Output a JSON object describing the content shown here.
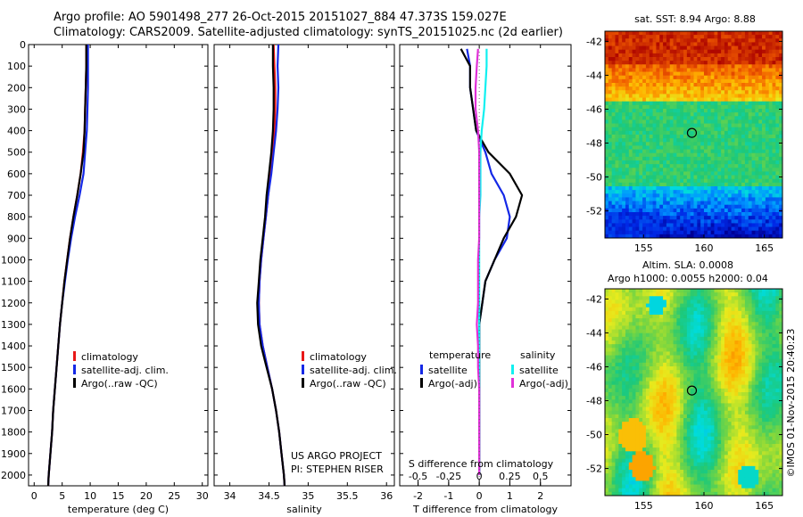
{
  "header": {
    "line1": "Argo profile: AO 5901498_277 26-Oct-2015 20151027_884 47.373S 159.027E",
    "line2": "Climatology: CARS2009. Satellite-adjusted climatology: synTS_20151025.nc (2d earlier)"
  },
  "colors": {
    "red": "#e81818",
    "blue": "#1428e6",
    "black": "#000000",
    "cyan": "#10f0f0",
    "magenta": "#e030d8"
  },
  "chart_data": [
    {
      "id": "temperature",
      "type": "line",
      "xlabel": "temperature (deg C)",
      "xlim": [
        -1,
        31
      ],
      "ylim": [
        2050,
        0
      ],
      "xticks": [
        "0",
        "5",
        "10",
        "15",
        "20",
        "25",
        "30"
      ],
      "yticks": [
        "0",
        "100",
        "200",
        "300",
        "400",
        "500",
        "600",
        "700",
        "800",
        "900",
        "1000",
        "1100",
        "1200",
        "1300",
        "1400",
        "1500",
        "1600",
        "1700",
        "1800",
        "1900",
        "2000"
      ],
      "legend": [
        "climatology",
        "satellite-adj. clim.",
        "Argo(..raw -QC)"
      ],
      "series": [
        {
          "name": "climatology",
          "color": "red",
          "x": [
            9.3,
            9.3,
            9.2,
            9.1,
            9.0,
            8.7,
            8.3,
            7.7,
            7.0,
            6.4,
            5.9,
            5.4,
            5.0,
            4.6,
            4.3,
            4.0,
            3.7,
            3.4,
            3.2,
            2.9,
            2.6,
            2.5
          ],
          "y": [
            0,
            100,
            200,
            300,
            400,
            500,
            600,
            700,
            800,
            900,
            1000,
            1100,
            1200,
            1300,
            1400,
            1500,
            1600,
            1700,
            1800,
            1900,
            2000,
            2050
          ]
        },
        {
          "name": "satellite-adj. clim.",
          "color": "blue",
          "x": [
            9.6,
            9.6,
            9.6,
            9.5,
            9.4,
            9.1,
            8.8,
            8.1,
            7.3,
            6.6,
            6.0,
            5.5,
            5.0,
            4.6,
            4.3,
            4.0,
            3.7,
            3.4,
            3.2,
            2.9,
            2.6,
            2.5
          ],
          "y": [
            0,
            100,
            200,
            300,
            400,
            500,
            600,
            700,
            800,
            900,
            1000,
            1100,
            1200,
            1300,
            1400,
            1500,
            1600,
            1700,
            1800,
            1900,
            2000,
            2050
          ]
        },
        {
          "name": "Argo(..raw -QC)",
          "color": "black",
          "x": [
            9.3,
            9.3,
            9.2,
            9.1,
            9.0,
            8.8,
            8.3,
            7.7,
            7.0,
            6.4,
            5.9,
            5.4,
            5.0,
            4.6,
            4.3,
            4.0,
            3.7,
            3.4,
            3.2,
            2.9,
            2.6,
            2.5
          ],
          "y": [
            0,
            100,
            200,
            300,
            400,
            500,
            600,
            700,
            800,
            900,
            1000,
            1100,
            1200,
            1300,
            1400,
            1500,
            1600,
            1700,
            1800,
            1900,
            2000,
            2050
          ]
        }
      ]
    },
    {
      "id": "salinity",
      "type": "line",
      "xlabel": "salinity",
      "xlim": [
        33.8,
        36.1
      ],
      "ylim": [
        2050,
        0
      ],
      "xticks": [
        "34",
        "34.5",
        "35",
        "35.5",
        "36"
      ],
      "legend": [
        "climatology",
        "satellite-adj. clim.",
        "Argo(..raw -QC)"
      ],
      "annotation": [
        "US ARGO PROJECT",
        "PI: STEPHEN RISER"
      ],
      "series": [
        {
          "name": "climatology",
          "color": "red",
          "x": [
            34.56,
            34.57,
            34.58,
            34.58,
            34.57,
            34.54,
            34.52,
            34.49,
            34.46,
            34.43,
            34.4,
            34.38,
            34.37,
            34.38,
            34.42,
            34.48,
            34.54,
            34.59,
            34.63,
            34.66,
            34.69,
            34.7
          ],
          "y": [
            0,
            100,
            200,
            300,
            400,
            500,
            600,
            700,
            800,
            900,
            1000,
            1100,
            1200,
            1300,
            1400,
            1500,
            1600,
            1700,
            1800,
            1900,
            2000,
            2050
          ]
        },
        {
          "name": "satellite-adj. clim.",
          "color": "blue",
          "x": [
            34.62,
            34.61,
            34.62,
            34.61,
            34.59,
            34.56,
            34.53,
            34.49,
            34.46,
            34.43,
            34.4,
            34.38,
            34.37,
            34.38,
            34.42,
            34.48,
            34.54,
            34.59,
            34.63,
            34.66,
            34.69,
            34.7
          ],
          "y": [
            0,
            100,
            200,
            300,
            400,
            500,
            600,
            700,
            800,
            900,
            1000,
            1100,
            1200,
            1300,
            1400,
            1500,
            1600,
            1700,
            1800,
            1900,
            2000,
            2050
          ]
        },
        {
          "name": "Argo(..raw -QC)",
          "color": "black",
          "x": [
            34.55,
            34.55,
            34.56,
            34.56,
            34.55,
            34.53,
            34.5,
            34.47,
            34.45,
            34.42,
            34.39,
            34.37,
            34.35,
            34.36,
            34.4,
            34.47,
            34.54,
            34.59,
            34.63,
            34.66,
            34.69,
            34.7
          ],
          "y": [
            0,
            100,
            200,
            300,
            400,
            500,
            600,
            700,
            800,
            900,
            1000,
            1100,
            1200,
            1300,
            1400,
            1500,
            1600,
            1700,
            1800,
            1900,
            2000,
            2050
          ]
        }
      ]
    },
    {
      "id": "difference",
      "type": "line",
      "xlabel": "T difference from climatology",
      "x2label": "S difference from climatology",
      "xlim": [
        -2.6,
        3.0
      ],
      "ylim": [
        2050,
        0
      ],
      "xticks": [
        "-2",
        "-1",
        "0",
        "1",
        "2"
      ],
      "x2ticks": [
        "-0.5",
        "-0.25",
        "0",
        "0.25",
        "0.5"
      ],
      "legend_titles": [
        "temperature",
        "salinity"
      ],
      "legend": [
        "satellite",
        "Argo(-adj)",
        "satellite",
        "Argo(-adj)"
      ],
      "series": [
        {
          "name": "satellite",
          "quantity": "temperature",
          "color": "blue",
          "x": [
            -0.4,
            -0.3,
            -0.3,
            -0.2,
            -0.1,
            0.2,
            0.4,
            0.8,
            1.0,
            0.9,
            0.5,
            0.2,
            0.1,
            0.0,
            0.0,
            0.0,
            0.0,
            0.0,
            0.0,
            0.0,
            0.0
          ],
          "y": [
            20,
            100,
            200,
            300,
            400,
            500,
            600,
            700,
            800,
            900,
            1000,
            1100,
            1200,
            1300,
            1400,
            1500,
            1600,
            1700,
            1800,
            1900,
            2000
          ]
        },
        {
          "name": "Argo(-adj)",
          "quantity": "temperature",
          "color": "black",
          "x": [
            -0.6,
            -0.3,
            -0.3,
            -0.2,
            -0.1,
            0.3,
            1.0,
            1.4,
            1.2,
            0.8,
            0.5,
            0.2,
            0.1,
            0.0,
            0.0,
            0.0,
            0.0,
            0.0,
            0.0,
            0.0,
            0.0
          ],
          "y": [
            20,
            100,
            200,
            300,
            400,
            500,
            600,
            700,
            800,
            900,
            1000,
            1100,
            1200,
            1300,
            1400,
            1500,
            1600,
            1700,
            1800,
            1900,
            2000
          ]
        },
        {
          "name": "satellite",
          "quantity": "salinity",
          "color": "cyan",
          "x": [
            0.06,
            0.06,
            0.05,
            0.04,
            0.02,
            0.01,
            0.01,
            0.01,
            0.0,
            0.0,
            0.0,
            0.0,
            0.0,
            0.0,
            0.0,
            0.0,
            0.0,
            0.0,
            0.0,
            0.0,
            0.0
          ],
          "y": [
            20,
            100,
            200,
            300,
            400,
            500,
            600,
            700,
            800,
            900,
            1000,
            1100,
            1200,
            1300,
            1400,
            1500,
            1600,
            1700,
            1800,
            1900,
            2000
          ]
        },
        {
          "name": "Argo(-adj)",
          "quantity": "salinity",
          "color": "magenta",
          "x": [
            -0.01,
            -0.02,
            -0.03,
            -0.03,
            -0.01,
            0.0,
            0.0,
            0.0,
            0.0,
            0.0,
            -0.01,
            -0.01,
            -0.01,
            -0.02,
            -0.01,
            -0.01,
            0.0,
            0.0,
            0.0,
            0.0,
            0.0
          ],
          "y": [
            20,
            100,
            200,
            300,
            400,
            500,
            600,
            700,
            800,
            900,
            1000,
            1100,
            1200,
            1300,
            1400,
            1500,
            1600,
            1700,
            1800,
            1900,
            2000
          ]
        }
      ]
    },
    {
      "id": "sst-map",
      "type": "heatmap",
      "title": "sat. SST: 8.94 Argo: 8.88",
      "xlim": [
        151.8,
        166.5
      ],
      "ylim": [
        -53.6,
        -41.4
      ],
      "xticks": [
        "155",
        "160",
        "165"
      ],
      "yticks": [
        "-42",
        "-44",
        "-46",
        "-48",
        "-50",
        "-52"
      ],
      "marker": {
        "lon": 159.0,
        "lat": -47.4
      }
    },
    {
      "id": "sla-map",
      "type": "heatmap",
      "title": [
        "Altim. SLA: 0.0008",
        "Argo h1000: 0.0055 h2000: 0.04"
      ],
      "xlim": [
        151.8,
        166.5
      ],
      "ylim": [
        -53.6,
        -41.4
      ],
      "xticks": [
        "155",
        "160",
        "165"
      ],
      "yticks": [
        "-42",
        "-44",
        "-46",
        "-48",
        "-50",
        "-52"
      ],
      "marker": {
        "lon": 159.0,
        "lat": -47.4
      }
    }
  ],
  "footer": {
    "stamp": "©IMOS 01-Nov-2015 20:40:23"
  }
}
